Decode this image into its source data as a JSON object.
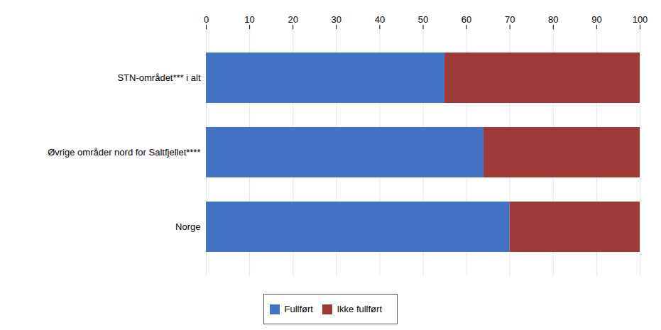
{
  "chart_data": {
    "type": "bar",
    "orientation": "horizontal",
    "stacked": true,
    "categories": [
      "STN-området*** i alt",
      "Øvrige områder nord for Saltfjellet****",
      "Norge"
    ],
    "series": [
      {
        "name": "Fullført",
        "color": "#4472C4",
        "values": [
          55,
          64,
          70
        ]
      },
      {
        "name": "Ikke fullført",
        "color": "#9E3A38",
        "values": [
          45,
          36,
          30
        ]
      }
    ],
    "xlim": [
      0,
      100
    ],
    "xticks": [
      0,
      10,
      20,
      30,
      40,
      50,
      60,
      70,
      80,
      90,
      100
    ],
    "grid": true,
    "legend": "bottom"
  }
}
